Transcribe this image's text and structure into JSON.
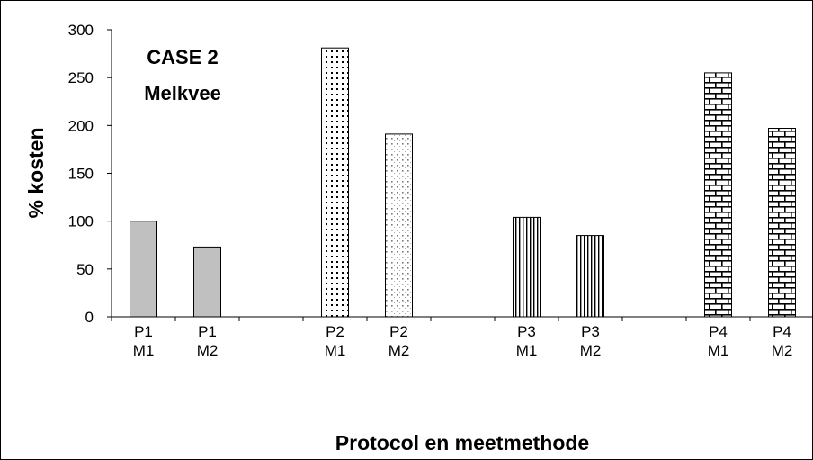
{
  "chart_data": {
    "type": "bar",
    "annotation": [
      "CASE 2",
      "Melkvee"
    ],
    "xlabel": "Protocol en meetmethode",
    "ylabel": "% kosten",
    "ylim": [
      0,
      300
    ],
    "yticks": [
      0,
      50,
      100,
      150,
      200,
      250,
      300
    ],
    "grid": false,
    "legend": "none",
    "categories": [
      [
        "P1",
        "M1"
      ],
      [
        "P1",
        "M2"
      ],
      [
        "",
        ""
      ],
      [
        "P2",
        "M1"
      ],
      [
        "P2",
        "M2"
      ],
      [
        "",
        ""
      ],
      [
        "P3",
        "M1"
      ],
      [
        "P3",
        "M2"
      ],
      [
        "",
        ""
      ],
      [
        "P4",
        "M1"
      ],
      [
        "P4",
        "M2"
      ]
    ],
    "values": [
      100,
      73,
      null,
      281,
      191,
      null,
      104,
      85,
      null,
      255,
      197
    ],
    "patterns": [
      "solid-gray",
      "solid-gray",
      null,
      "dots-large",
      "dots-small",
      null,
      "vertical-lines",
      "vertical-lines",
      null,
      "bricks",
      "bricks"
    ],
    "colors": {
      "bar_outline": "#000000",
      "gray_fill": "#c0c0c0"
    }
  }
}
